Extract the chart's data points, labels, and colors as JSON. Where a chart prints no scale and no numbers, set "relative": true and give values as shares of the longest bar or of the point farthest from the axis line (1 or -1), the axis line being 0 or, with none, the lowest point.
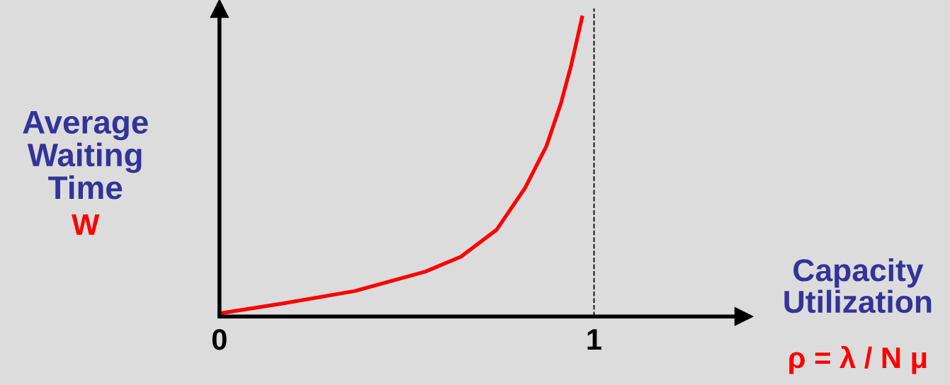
{
  "chart_data": {
    "type": "line",
    "relative": true,
    "xlabel": "Capacity Utilization",
    "ylabel": "Average Waiting Time",
    "x": [
      0,
      0.171,
      0.361,
      0.55,
      0.645,
      0.74,
      0.816,
      0.873,
      0.911,
      0.939,
      0.968
    ],
    "series": [
      {
        "color": "#ff0000",
        "values": [
          0.01,
          0.044,
          0.085,
          0.15,
          0.2,
          0.29,
          0.43,
          0.57,
          0.71,
          0.84,
          1.0
        ]
      }
    ],
    "xlim": [
      0,
      1.4
    ],
    "xticks": [
      0,
      1
    ],
    "ref_lines": [
      {
        "axis": "x",
        "value": 1,
        "color": "#000000",
        "line_style": "dashed"
      }
    ],
    "annotations": [
      "W",
      "ρ = λ / N μ"
    ],
    "marker": "none",
    "line_style": "solid",
    "grid": false,
    "legend": false
  }
}
